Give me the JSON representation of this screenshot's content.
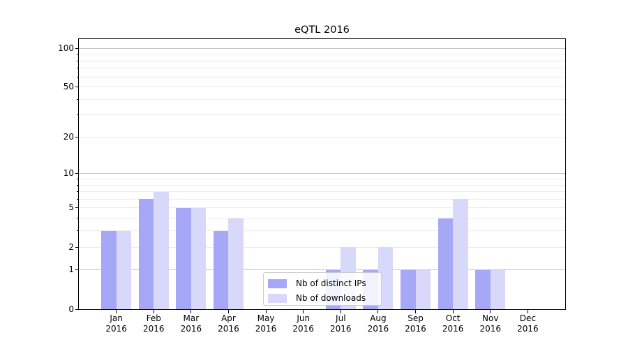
{
  "title": "eQTL 2016",
  "colors": {
    "distinct_ips": "#a7a7f7",
    "downloads": "#d8d8fa",
    "grid_major": "#c6c6c6",
    "grid_minor": "#ebebeb",
    "axis": "#000000",
    "legend_border": "#cccccc",
    "background": "#ffffff"
  },
  "chart_data": {
    "type": "bar",
    "title": "eQTL 2016",
    "y_scale": "log1p",
    "ylim": [
      0,
      118
    ],
    "grid": true,
    "legend_position": "lower center (inside axes)",
    "yticks": [
      0,
      1,
      2,
      5,
      10,
      20,
      50,
      100
    ],
    "y_major_gridlines": [
      1,
      10,
      100
    ],
    "y_minor_gridlines": [
      2,
      3,
      4,
      5,
      6,
      7,
      8,
      9,
      20,
      30,
      40,
      50,
      60,
      70,
      80,
      90
    ],
    "categories": [
      "Jan 2016",
      "Feb 2016",
      "Mar 2016",
      "Apr 2016",
      "May 2016",
      "Jun 2016",
      "Jul 2016",
      "Aug 2016",
      "Sep 2016",
      "Oct 2016",
      "Nov 2016",
      "Dec 2016"
    ],
    "series": [
      {
        "name": "Nb of distinct IPs",
        "color": "#a7a7f7",
        "values": [
          3,
          6,
          5,
          3,
          0,
          0,
          1,
          1,
          1,
          4,
          1,
          0
        ]
      },
      {
        "name": "Nb of downloads",
        "color": "#d8d8fa",
        "values": [
          3,
          7,
          5,
          4,
          0,
          0,
          2,
          2,
          1,
          6,
          1,
          0
        ]
      }
    ]
  },
  "legend": {
    "items": [
      {
        "label": "Nb of distinct IPs"
      },
      {
        "label": "Nb of downloads"
      }
    ]
  }
}
